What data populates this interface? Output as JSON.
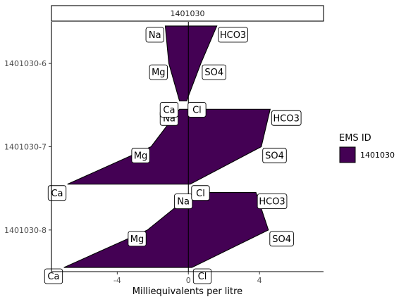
{
  "chart_data": {
    "type": "area",
    "title": "",
    "facet_label": "1401030",
    "xlabel": "Milliequivalents per litre",
    "ylabel": "",
    "xlim": [
      -7.7,
      7.6
    ],
    "xticks": [
      -4,
      0,
      4
    ],
    "xtick_labels": [
      "-4",
      "0",
      "4"
    ],
    "grid": false,
    "legend": {
      "title": "EMS ID",
      "position": "right",
      "entries": [
        {
          "label": "1401030",
          "color": "#440154"
        }
      ]
    },
    "fill_color": "#440154",
    "samples": [
      {
        "name": "1401030-8",
        "cations": {
          "Na": 0.3,
          "Mg": -2.3,
          "Ca": -7.0
        },
        "anions": {
          "HCO3": 3.8,
          "SO4": 4.5,
          "Cl": 0.2
        }
      },
      {
        "name": "1401030-7",
        "cations": {
          "Na": -0.5,
          "Mg": -2.1,
          "Ca": -6.8
        },
        "anions": {
          "HCO3": 4.6,
          "SO4": 4.1,
          "Cl": 0.1
        }
      },
      {
        "name": "1401030-6",
        "cations": {
          "Na": -1.3,
          "Mg": -1.1,
          "Ca": -0.5
        },
        "anions": {
          "HCO3": 1.6,
          "SO4": 0.7,
          "Cl": -0.1
        }
      }
    ]
  }
}
